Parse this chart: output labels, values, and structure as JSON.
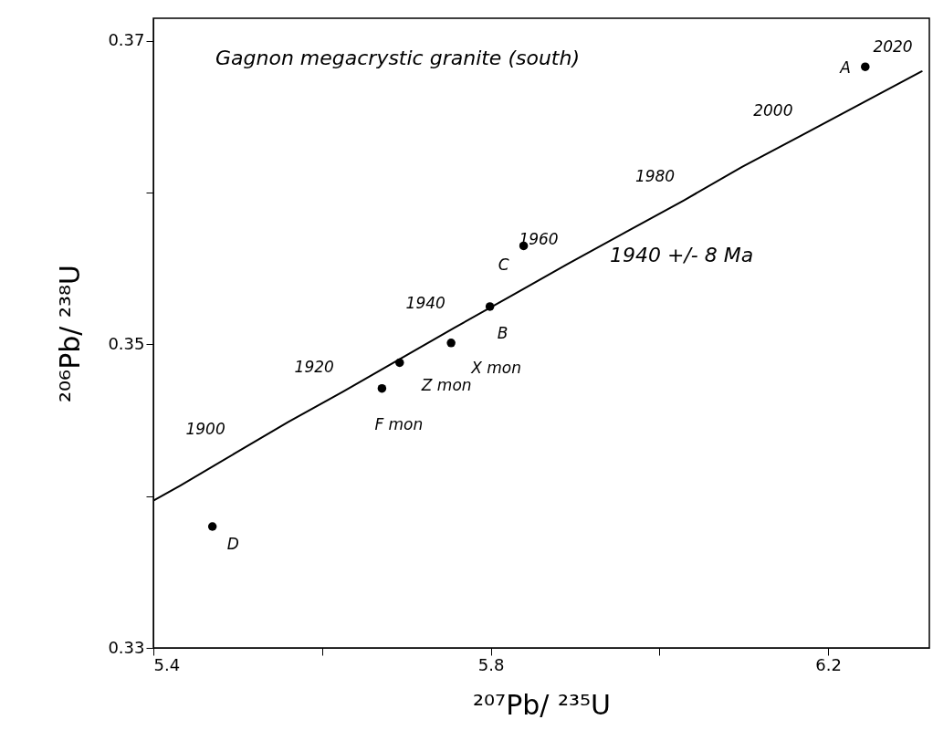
{
  "chart_data": {
    "type": "scatter",
    "title": "Gagnon megacrystic granite (south)",
    "xlabel": "²⁰⁷Pb/ ²³⁵U",
    "ylabel": "²⁰⁶Pb/ ²³⁸U",
    "xlim": [
      5.4,
      6.32
    ],
    "ylim": [
      0.33,
      0.3715
    ],
    "xticks": [
      5.4,
      {
        "value": 5.6,
        "label": null
      },
      5.8,
      {
        "value": 6.0,
        "label": null
      },
      6.2
    ],
    "yticks": [
      0.33,
      {
        "value": 0.34,
        "label": null
      },
      0.35,
      {
        "value": 0.36,
        "label": null
      },
      0.37
    ],
    "grid": false,
    "marker": "circle",
    "series": [
      {
        "type": "line",
        "marker": "none",
        "color": "#000000",
        "x": [
          5.4,
          5.432,
          5.496,
          5.56,
          5.625,
          5.691,
          5.757,
          5.824,
          5.891,
          5.96,
          6.029,
          6.098,
          6.169,
          6.24,
          6.311
        ],
        "values": [
          0.3397,
          0.3407,
          0.3428,
          0.3449,
          0.3469,
          0.349,
          0.3511,
          0.3532,
          0.3553,
          0.3574,
          0.3595,
          0.3617,
          0.3638,
          0.3659,
          0.368
        ]
      },
      {
        "color": "#000000",
        "x": [
          6.244,
          5.839,
          5.799,
          5.753,
          5.692,
          5.671,
          5.47
        ],
        "values": [
          0.3683,
          0.3565,
          0.3525,
          0.3501,
          0.3488,
          0.3471,
          0.338
        ]
      }
    ],
    "annotations": [
      "1940 +/- 8 Ma",
      {
        "text": "1900",
        "x": 5.496,
        "y": 0.3428
      },
      {
        "text": "1920",
        "x": 5.625,
        "y": 0.3469
      },
      {
        "text": "1940",
        "x": 5.757,
        "y": 0.3511
      },
      {
        "text": "1960",
        "x": 5.891,
        "y": 0.3553
      },
      {
        "text": "1980",
        "x": 6.029,
        "y": 0.3595
      },
      {
        "text": "2000",
        "x": 6.169,
        "y": 0.3638
      },
      {
        "text": "2020",
        "x": 6.311,
        "y": 0.368
      },
      {
        "text": "A",
        "x": 6.244,
        "y": 0.3683
      },
      {
        "text": "C",
        "x": 5.839,
        "y": 0.3565
      },
      {
        "text": "B",
        "x": 5.799,
        "y": 0.3525
      },
      {
        "text": "X mon",
        "x": 5.753,
        "y": 0.3501
      },
      {
        "text": "Z mon",
        "x": 5.692,
        "y": 0.3488
      },
      {
        "text": "F mon",
        "x": 5.671,
        "y": 0.3471
      },
      {
        "text": "D",
        "x": 5.47,
        "y": 0.338
      }
    ]
  }
}
